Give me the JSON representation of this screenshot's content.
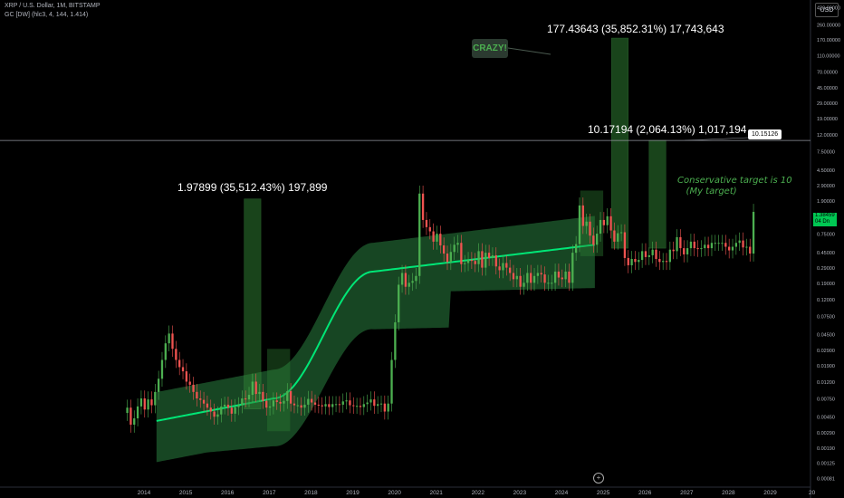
{
  "header": {
    "symbol_line": "XRP / U.S. Dollar, 1M, BITSTAMP",
    "indicator_line": "GC [DW] (hlc3, 4, 144, 1.414)",
    "currency": "USD"
  },
  "annotations": {
    "rally_2017": "1.97899 (35,512.43%) 197,899",
    "rally_top": "177.43643 (35,852.31%) 17,743,643",
    "rally_conservative": "10.17194 (2,064.13%) 1,017,194",
    "crazy_label": "CRAZY!",
    "conservative_note": "Conservative target is 10\n   (My target)",
    "hline_label": "10.15126",
    "price_label": "1.38459\n04 Dn"
  },
  "colors": {
    "up": "#26a69a",
    "up_bright": "#4caf50",
    "down": "#ef5350",
    "band": "#1f5e2f",
    "midline": "#00e676"
  },
  "chart_data": {
    "type": "candlestick",
    "scale": "log",
    "title": "XRP / U.S. Dollar, 1M, BITSTAMP",
    "ylim": [
      0.00081,
      420
    ],
    "y_ticks": [
      "420.00000",
      "260.00000",
      "170.00000",
      "110.00000",
      "70.00000",
      "45.00000",
      "29.00000",
      "19.00000",
      "12.00000",
      "7.50000",
      "4.50000",
      "2.90000",
      "1.90000",
      "1.20000",
      "0.75000",
      "0.45000",
      "0.29000",
      "0.19000",
      "0.12000",
      "0.07500",
      "0.04500",
      "0.02900",
      "0.01900",
      "0.01200",
      "0.00750",
      "0.00450",
      "0.00290",
      "0.00190",
      "0.00125",
      "0.00081"
    ],
    "x_ticks": [
      "2014",
      "2015",
      "2016",
      "2017",
      "2018",
      "2019",
      "2020",
      "2021",
      "2022",
      "2023",
      "2024",
      "2025",
      "2026",
      "2027",
      "2028",
      "2029",
      "20"
    ],
    "horizontal_line": 10.15126,
    "rally_boxes": [
      {
        "from": 2016.4,
        "to": 2016.8,
        "low": 0.0056,
        "high": 1.97899
      },
      {
        "from": 2025.2,
        "to": 2025.6,
        "low": 0.5,
        "high": 177.43643
      },
      {
        "from": 2026.1,
        "to": 2026.5,
        "low": 0.5,
        "high": 10.17194
      }
    ],
    "consolidation_boxes": [
      {
        "from": 2016.95,
        "to": 2017.5,
        "low": 0.003,
        "high": 0.03
      },
      {
        "from": 2024.45,
        "to": 2025.0,
        "low": 0.4,
        "high": 2.5
      }
    ],
    "closes": [
      0.0058,
      0.0036,
      0.0043,
      0.006,
      0.0075,
      0.0055,
      0.0073,
      0.0062,
      0.009,
      0.013,
      0.022,
      0.035,
      0.046,
      0.03,
      0.022,
      0.018,
      0.016,
      0.012,
      0.011,
      0.009,
      0.0075,
      0.0072,
      0.0065,
      0.0058,
      0.0052,
      0.0045,
      0.0048,
      0.006,
      0.0063,
      0.0058,
      0.0049,
      0.0059,
      0.0062,
      0.0075,
      0.0073,
      0.0083,
      0.012,
      0.0085,
      0.009,
      0.007,
      0.0058,
      0.006,
      0.0071,
      0.0068,
      0.0065,
      0.007,
      0.0092,
      0.0065,
      0.0062,
      0.0062,
      0.0058,
      0.0063,
      0.0074,
      0.0067,
      0.0063,
      0.0062,
      0.006,
      0.0064,
      0.0059,
      0.0064,
      0.0064,
      0.0063,
      0.0069,
      0.0071,
      0.0062,
      0.0061,
      0.0061,
      0.0059,
      0.0064,
      0.0067,
      0.0073,
      0.0061,
      0.0064,
      0.0065,
      0.0052,
      0.0065,
      0.022,
      0.063,
      0.18,
      0.25,
      0.17,
      0.19,
      0.2,
      0.23,
      2.3,
      1.1,
      0.9,
      0.8,
      0.6,
      0.75,
      0.54,
      0.43,
      0.34,
      0.45,
      0.55,
      0.58,
      0.32,
      0.33,
      0.36,
      0.35,
      0.32,
      0.46,
      0.29,
      0.44,
      0.38,
      0.41,
      0.3,
      0.27,
      0.33,
      0.29,
      0.25,
      0.21,
      0.23,
      0.17,
      0.19,
      0.25,
      0.19,
      0.23,
      0.25,
      0.24,
      0.19,
      0.19,
      0.19,
      0.26,
      0.22,
      0.21,
      0.26,
      0.19,
      0.44,
      0.56,
      1.65,
      0.93,
      1.05,
      0.71,
      0.55,
      0.75,
      1.1,
      0.95,
      1.22,
      0.82,
      0.6,
      0.76,
      0.78,
      0.38,
      0.31,
      0.37,
      0.34,
      0.36,
      0.46,
      0.39,
      0.41,
      0.48,
      0.37,
      0.34,
      0.35,
      0.34,
      0.48,
      0.46,
      0.68,
      0.5,
      0.42,
      0.5,
      0.6,
      0.5,
      0.49,
      0.5,
      0.55,
      0.5,
      0.58,
      0.58,
      0.58,
      0.58,
      0.52,
      0.47,
      0.52,
      0.58,
      0.62,
      0.51,
      0.52,
      0.43,
      1.38
    ],
    "opens": [
      0.005,
      0.0058,
      0.0036,
      0.0043,
      0.006,
      0.0075,
      0.0055,
      0.0073,
      0.0062,
      0.009,
      0.013,
      0.022,
      0.035,
      0.046,
      0.03,
      0.022,
      0.018,
      0.016,
      0.012,
      0.011,
      0.009,
      0.0075,
      0.0072,
      0.0065,
      0.0058,
      0.0052,
      0.0045,
      0.0048,
      0.006,
      0.0063,
      0.0058,
      0.0049,
      0.0059,
      0.0062,
      0.0075,
      0.0073,
      0.0083,
      0.012,
      0.0085,
      0.009,
      0.007,
      0.0058,
      0.006,
      0.0071,
      0.0068,
      0.0065,
      0.007,
      0.0092,
      0.0065,
      0.0062,
      0.0062,
      0.0058,
      0.0063,
      0.0074,
      0.0067,
      0.0063,
      0.0062,
      0.006,
      0.0064,
      0.0059,
      0.0064,
      0.0064,
      0.0063,
      0.0069,
      0.0071,
      0.0062,
      0.0061,
      0.0061,
      0.0059,
      0.0064,
      0.0067,
      0.0073,
      0.0061,
      0.0064,
      0.0065,
      0.0052,
      0.0065,
      0.022,
      0.063,
      0.18,
      0.25,
      0.17,
      0.19,
      0.2,
      0.23,
      2.3,
      1.1,
      0.9,
      0.8,
      0.6,
      0.75,
      0.54,
      0.43,
      0.34,
      0.45,
      0.55,
      0.58,
      0.32,
      0.33,
      0.36,
      0.35,
      0.32,
      0.46,
      0.29,
      0.44,
      0.38,
      0.41,
      0.3,
      0.27,
      0.33,
      0.29,
      0.25,
      0.21,
      0.23,
      0.17,
      0.19,
      0.25,
      0.19,
      0.23,
      0.25,
      0.24,
      0.19,
      0.19,
      0.19,
      0.26,
      0.22,
      0.21,
      0.26,
      0.19,
      0.44,
      0.56,
      1.65,
      0.93,
      1.05,
      0.71,
      0.55,
      0.75,
      1.1,
      0.95,
      1.22,
      0.82,
      0.6,
      0.76,
      0.78,
      0.38,
      0.31,
      0.37,
      0.34,
      0.36,
      0.46,
      0.39,
      0.41,
      0.48,
      0.37,
      0.34,
      0.35,
      0.34,
      0.48,
      0.46,
      0.68,
      0.5,
      0.42,
      0.5,
      0.6,
      0.5,
      0.49,
      0.5,
      0.55,
      0.5,
      0.58,
      0.58,
      0.58,
      0.58,
      0.52,
      0.47,
      0.52,
      0.58,
      0.62,
      0.51,
      0.52,
      0.43
    ],
    "start_year": 2013.6
  }
}
